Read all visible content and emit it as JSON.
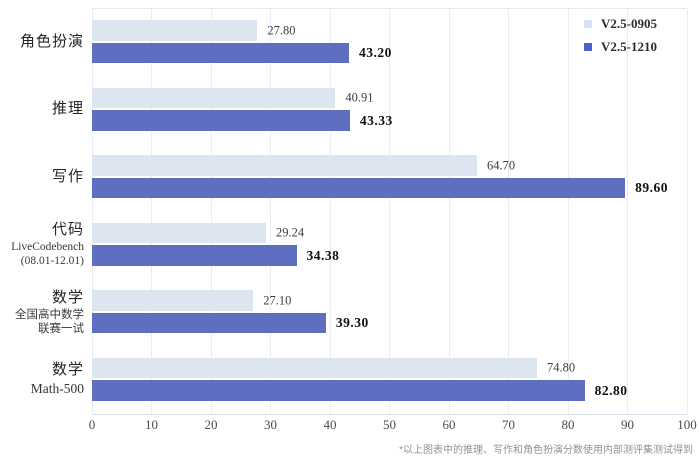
{
  "chart_data": {
    "type": "bar",
    "orientation": "horizontal",
    "title": "",
    "xlabel": "",
    "ylabel": "",
    "xlim": [
      0,
      100
    ],
    "x_ticks": [
      0,
      10,
      20,
      30,
      40,
      50,
      60,
      70,
      80,
      90,
      100
    ],
    "grid": true,
    "legend_position": "top-right",
    "series": [
      {
        "name": "V2.5-0905",
        "color": "#dde5f1"
      },
      {
        "name": "V2.5-1210",
        "color": "#5e6fc2"
      }
    ],
    "legend_swatch_colors": {
      "v25_0905": "#d8e1ef",
      "v25_1210": "#4d62c6"
    },
    "groups": [
      {
        "label": "角色扮演",
        "subs": [],
        "values": [
          27.8,
          43.2
        ],
        "value_labels": [
          "27.80",
          "43.20"
        ]
      },
      {
        "label": "推理",
        "subs": [],
        "values": [
          40.91,
          43.33
        ],
        "value_labels": [
          "40.91",
          "43.33"
        ]
      },
      {
        "label": "写作",
        "subs": [],
        "values": [
          64.7,
          89.6
        ],
        "value_labels": [
          "64.70",
          "89.60"
        ]
      },
      {
        "label": "代码",
        "subs": [
          "LiveCodebench",
          "(08.01-12.01)"
        ],
        "values": [
          29.24,
          34.38
        ],
        "value_labels": [
          "29.24",
          "34.38"
        ]
      },
      {
        "label": "数学",
        "subs": [
          "全国高中数学",
          "联赛一试"
        ],
        "values": [
          27.1,
          39.3
        ],
        "value_labels": [
          "27.10",
          "39.30"
        ]
      },
      {
        "label": "数学",
        "subs": [
          "Math-500"
        ],
        "values": [
          74.8,
          82.8
        ],
        "value_labels": [
          "74.80",
          "82.80"
        ]
      }
    ],
    "footnote": "*以上图表中的推理、写作和角色扮演分数使用内部测评集测试得到"
  }
}
